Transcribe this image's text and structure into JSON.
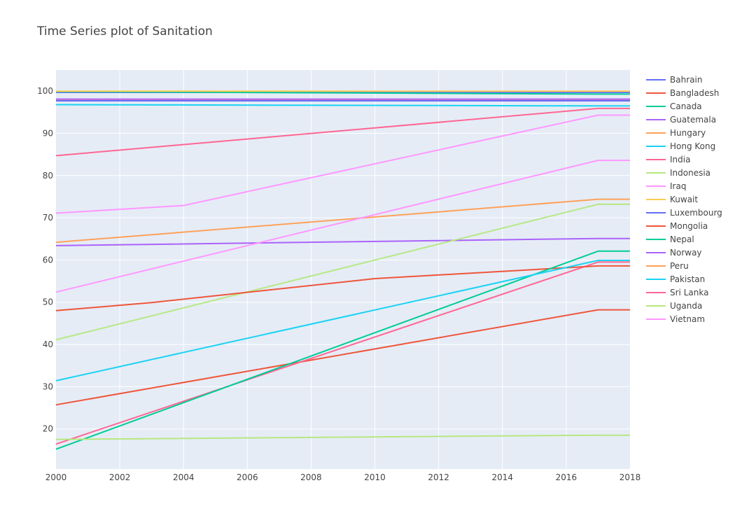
{
  "chart_data": {
    "type": "line",
    "title": "Time Series plot of Sanitation",
    "xlabel": "",
    "ylabel": "",
    "xlim": [
      2000,
      2018
    ],
    "ylim": [
      10.5,
      105
    ],
    "x_ticks": [
      "2000",
      "2002",
      "2004",
      "2006",
      "2008",
      "2010",
      "2012",
      "2014",
      "2016",
      "2018"
    ],
    "y_ticks": [
      "20",
      "30",
      "40",
      "50",
      "60",
      "70",
      "80",
      "90",
      "100"
    ],
    "grid": true,
    "legend_position": "right",
    "plot_background": "#E5ECF6",
    "series": [
      {
        "name": "Bahrain",
        "color": "#636efa",
        "x": [
          2000,
          2017,
          2018
        ],
        "y": [
          99.7,
          99.7,
          99.7
        ]
      },
      {
        "name": "Bangladesh",
        "color": "#EF553B",
        "x": [
          2000,
          2017,
          2018
        ],
        "y": [
          25.7,
          48.2,
          48.2
        ]
      },
      {
        "name": "Canada",
        "color": "#00cc96",
        "x": [
          2000,
          2017,
          2018
        ],
        "y": [
          99.9,
          99.3,
          99.3
        ]
      },
      {
        "name": "Guatemala",
        "color": "#ab63fa",
        "x": [
          2000,
          2017,
          2018
        ],
        "y": [
          63.4,
          65.1,
          65.1
        ]
      },
      {
        "name": "Hungary",
        "color": "#FFA15A",
        "x": [
          2000,
          2017,
          2018
        ],
        "y": [
          98.0,
          98.0,
          98.0
        ]
      },
      {
        "name": "Hong Kong",
        "color": "#19d3f3",
        "x": [
          2000,
          2017,
          2018
        ],
        "y": [
          96.8,
          96.5,
          96.5
        ]
      },
      {
        "name": "India",
        "color": "#FF6692",
        "x": [
          2000,
          2017,
          2018
        ],
        "y": [
          16.4,
          59.5,
          59.5
        ]
      },
      {
        "name": "Indonesia",
        "color": "#B6E880",
        "x": [
          2000,
          2017,
          2018
        ],
        "y": [
          41.1,
          73.2,
          73.2
        ]
      },
      {
        "name": "Iraq",
        "color": "#FF97FF",
        "x": [
          2000,
          2004,
          2017,
          2018
        ],
        "y": [
          71.1,
          72.9,
          94.3,
          94.3
        ]
      },
      {
        "name": "Kuwait",
        "color": "#FECB52",
        "x": [
          2000,
          2017,
          2018
        ],
        "y": [
          100.0,
          100.0,
          100.0
        ]
      },
      {
        "name": "Luxembourg",
        "color": "#636efa",
        "x": [
          2000,
          2017,
          2018
        ],
        "y": [
          97.7,
          97.7,
          97.7
        ]
      },
      {
        "name": "Mongolia",
        "color": "#EF553B",
        "x": [
          2000,
          2003,
          2010,
          2017,
          2018
        ],
        "y": [
          48.0,
          49.9,
          55.6,
          58.6,
          58.6
        ]
      },
      {
        "name": "Nepal",
        "color": "#00cc96",
        "x": [
          2000,
          2017,
          2018
        ],
        "y": [
          15.2,
          62.1,
          62.1
        ]
      },
      {
        "name": "Norway",
        "color": "#ab63fa",
        "x": [
          2000,
          2017,
          2018
        ],
        "y": [
          98.1,
          98.1,
          98.1
        ]
      },
      {
        "name": "Peru",
        "color": "#FFA15A",
        "x": [
          2000,
          2017,
          2018
        ],
        "y": [
          64.2,
          74.4,
          74.4
        ]
      },
      {
        "name": "Pakistan",
        "color": "#19d3f3",
        "x": [
          2000,
          2017,
          2018
        ],
        "y": [
          31.4,
          59.9,
          59.9
        ]
      },
      {
        "name": "Sri Lanka",
        "color": "#FF6692",
        "x": [
          2000,
          2017,
          2018
        ],
        "y": [
          84.7,
          95.9,
          95.9
        ]
      },
      {
        "name": "Uganda",
        "color": "#B6E880",
        "x": [
          2000,
          2017,
          2018
        ],
        "y": [
          17.5,
          18.5,
          18.5
        ]
      },
      {
        "name": "Vietnam",
        "color": "#FF97FF",
        "x": [
          2000,
          2017,
          2018
        ],
        "y": [
          52.4,
          83.6,
          83.6
        ]
      }
    ]
  }
}
